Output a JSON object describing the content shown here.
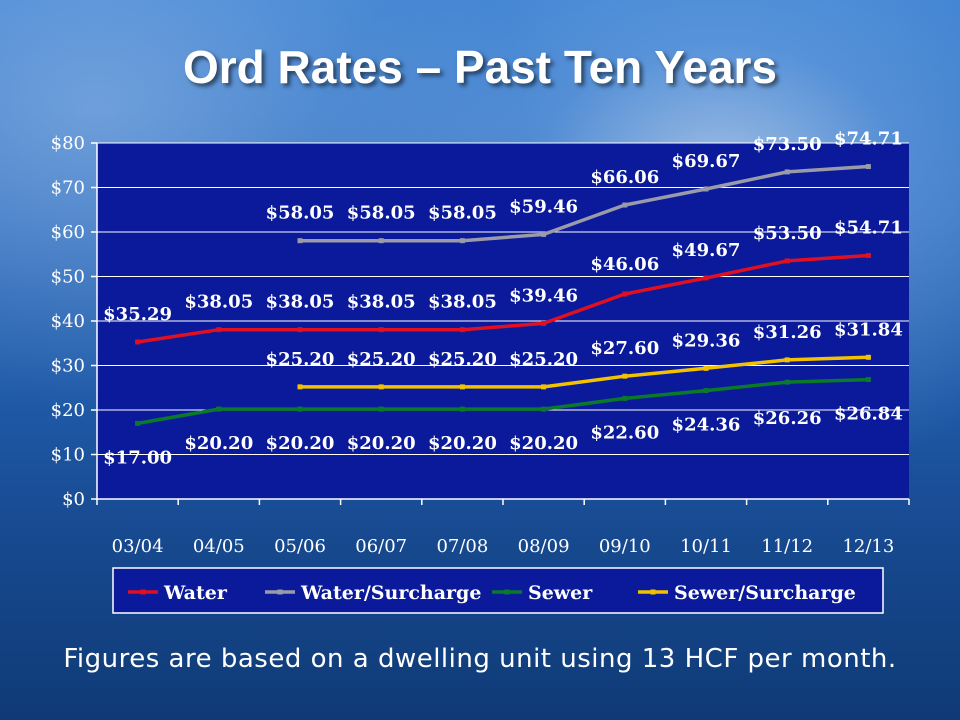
{
  "slide": {
    "title": "Ord Rates – Past Ten Years",
    "footnote": "Figures are based on a dwelling unit using 13 HCF per month."
  },
  "chart_data": {
    "type": "line",
    "categories": [
      "03/04",
      "04/05",
      "05/06",
      "06/07",
      "07/08",
      "08/09",
      "09/10",
      "10/11",
      "11/12",
      "12/13"
    ],
    "y_ticks": [
      "$0",
      "$10",
      "$20",
      "$30",
      "$40",
      "$50",
      "$60",
      "$70",
      "$80"
    ],
    "ylim": [
      0,
      80
    ],
    "grid": true,
    "legend_position": "bottom",
    "plot_background": "#0a1a9a",
    "series": [
      {
        "name": "Water",
        "color": "#e01020",
        "values": [
          35.29,
          38.05,
          38.05,
          38.05,
          38.05,
          39.46,
          46.06,
          49.67,
          53.5,
          54.71
        ],
        "labels": [
          "$35.29",
          "$38.05",
          "$38.05",
          "$38.05",
          "$38.05",
          "$39.46",
          "$46.06",
          "$49.67",
          "$53.50",
          "$54.71"
        ]
      },
      {
        "name": "Water/Surcharge",
        "color": "#9a9aa8",
        "values": [
          null,
          null,
          58.05,
          58.05,
          58.05,
          59.46,
          66.06,
          69.67,
          73.5,
          74.71
        ],
        "labels": [
          null,
          null,
          "$58.05",
          "$58.05",
          "$58.05",
          "$59.46",
          "$66.06",
          "$69.67",
          "$73.50",
          "$74.71"
        ]
      },
      {
        "name": "Sewer",
        "color": "#0a7a2a",
        "values": [
          17.0,
          20.2,
          20.2,
          20.2,
          20.2,
          20.2,
          22.6,
          24.36,
          26.26,
          26.84
        ],
        "labels": [
          "$17.00",
          "$20.20",
          "$20.20",
          "$20.20",
          "$20.20",
          "$20.20",
          "$22.60",
          "$24.36",
          "$26.26",
          "$26.84"
        ]
      },
      {
        "name": "Sewer/Surcharge",
        "color": "#f2c200",
        "values": [
          null,
          null,
          25.2,
          25.2,
          25.2,
          25.2,
          27.6,
          29.36,
          31.26,
          31.84
        ],
        "labels": [
          null,
          null,
          "$25.20",
          "$25.20",
          "$25.20",
          "$25.20",
          "$27.60",
          "$29.36",
          "$31.26",
          "$31.84"
        ]
      }
    ]
  }
}
